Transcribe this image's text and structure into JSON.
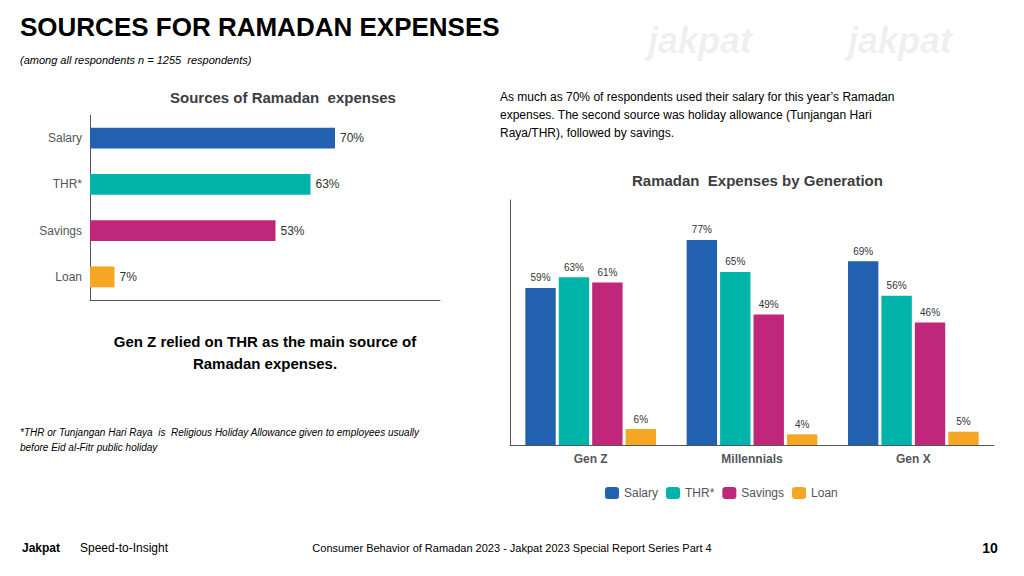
{
  "chart_data": [
    {
      "type": "bar",
      "title": "Sources of Ramadan  expenses",
      "orientation": "horizontal",
      "categories": [
        "Salary",
        "THR*",
        "Savings",
        "Loan"
      ],
      "values": [
        70,
        63,
        53,
        7
      ],
      "value_labels": [
        "70%",
        "63%",
        "53%",
        "7%"
      ],
      "colors": [
        "#2161b0",
        "#00b4aa",
        "#c0277a",
        "#f5a623"
      ],
      "xlim": [
        0,
        100
      ],
      "grid": false,
      "data_labels": true,
      "tick_labels": "y",
      "annotations": [
        "SOURCES FOR RAMADAN EXPENSES",
        "(among all respondents n = 1255  respondents)",
        "Gen Z relied on THR as the main source of\nRamadan expenses.",
        "*THR or Tunjangan Hari Raya  is  Religious Holiday Allowance given to employees usually\nbefore Eid al-Fitr public holiday",
        "jakpat",
        "jakpat",
        "Jakpat",
        "Speed-to-Insight",
        "Consumer Behavior of Ramadan 2023 - Jakpat 2023 Special Report Series Part 4",
        "10"
      ]
    },
    {
      "type": "bar",
      "title": "Ramadan  Expenses by Generation",
      "categories": [
        "Gen Z",
        "Millennials",
        "Gen X"
      ],
      "series": [
        {
          "name": "Salary",
          "color": "#2161b0",
          "values": [
            59,
            77,
            69
          ],
          "value_labels": [
            "59%",
            "77%",
            "69%"
          ]
        },
        {
          "name": "THR*",
          "color": "#00b4aa",
          "values": [
            63,
            65,
            56
          ],
          "value_labels": [
            "63%",
            "65%",
            "56%"
          ]
        },
        {
          "name": "Savings",
          "color": "#c0277a",
          "values": [
            61,
            49,
            46
          ],
          "value_labels": [
            "61%",
            "49%",
            "46%"
          ]
        },
        {
          "name": "Loan",
          "color": "#f5a623",
          "values": [
            6,
            4,
            5
          ],
          "value_labels": [
            "6%",
            "4%",
            "5%"
          ]
        }
      ],
      "ylim": [
        0,
        92
      ],
      "grid": false,
      "data_labels": true,
      "tick_labels": "x",
      "legend": "bottom",
      "annotations": [
        "As much as 70% of respondents used their salary for this year’s Ramadan\nexpenses. The second source was holiday allowance (Tunjangan Hari\nRaya/THR), followed by savings."
      ]
    }
  ]
}
